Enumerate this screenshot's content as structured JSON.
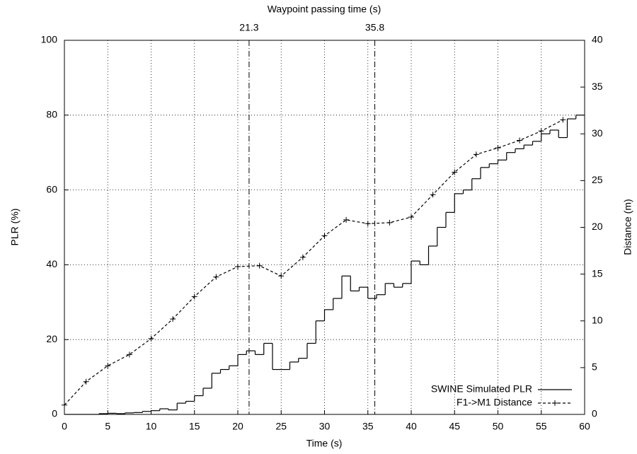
{
  "chart_data": {
    "type": "line",
    "x_label": "Time (s)",
    "y_label": "PLR (%)",
    "y2_label": "Distance (m)",
    "x2_label": "Waypoint passing time (s)",
    "x2ticks": [
      21.3,
      35.8
    ],
    "xlim": [
      0,
      60
    ],
    "xticks": [
      0,
      5,
      10,
      15,
      20,
      25,
      30,
      35,
      40,
      45,
      50,
      55,
      60
    ],
    "ylim": [
      0,
      100
    ],
    "yticks": [
      0,
      20,
      40,
      60,
      80,
      100
    ],
    "y2lim": [
      0,
      40
    ],
    "y2ticks": [
      0,
      5,
      10,
      15,
      20,
      25,
      30,
      35,
      40
    ],
    "grid": true,
    "legend": "lower right",
    "series": [
      {
        "name": "SWINE Simulated PLR",
        "color": "#000000",
        "style": "step",
        "x": [
          0,
          1,
          2,
          3,
          4,
          5,
          6,
          7,
          8,
          9,
          10,
          11,
          12,
          13,
          14,
          15,
          16,
          17,
          18,
          19,
          20,
          21,
          22,
          23,
          24,
          25,
          26,
          27,
          28,
          29,
          30,
          31,
          32,
          33,
          34,
          35,
          36,
          37,
          38,
          39,
          40,
          41,
          42,
          43,
          44,
          45,
          46,
          47,
          48,
          49,
          50,
          51,
          52,
          53,
          54,
          55,
          56,
          57,
          58,
          59
        ],
        "values": [
          0,
          0,
          0,
          0,
          0.2,
          0.3,
          0.2,
          0.4,
          0.5,
          0.8,
          1,
          1.5,
          1.2,
          3,
          3.5,
          5,
          7,
          11,
          12,
          13,
          16,
          17,
          16,
          19,
          12,
          12,
          14,
          15,
          19,
          25,
          28,
          31,
          37,
          33,
          34,
          31,
          32,
          35,
          34,
          35,
          41,
          40,
          45,
          50,
          54,
          59,
          60,
          63,
          66,
          67,
          68,
          70,
          71,
          72,
          73,
          75,
          76,
          74,
          79,
          80
        ]
      },
      {
        "name": "F1->M1 Distance",
        "color": "#000000",
        "style": "dashed",
        "axis": "y2",
        "x": [
          0,
          2.5,
          5,
          7.5,
          10,
          12.5,
          15,
          17.5,
          20,
          22.5,
          25,
          27.5,
          30,
          32.5,
          35,
          37.5,
          40,
          42.5,
          45,
          47.5,
          50,
          52.5,
          55,
          57.5
        ],
        "values": [
          1.0,
          3.5,
          5.2,
          6.4,
          8.1,
          10.2,
          12.6,
          14.7,
          15.8,
          15.9,
          14.8,
          16.8,
          19.1,
          20.8,
          20.4,
          20.5,
          21.1,
          23.5,
          25.9,
          27.8,
          28.5,
          29.3,
          30.3,
          31.5
        ]
      }
    ]
  }
}
